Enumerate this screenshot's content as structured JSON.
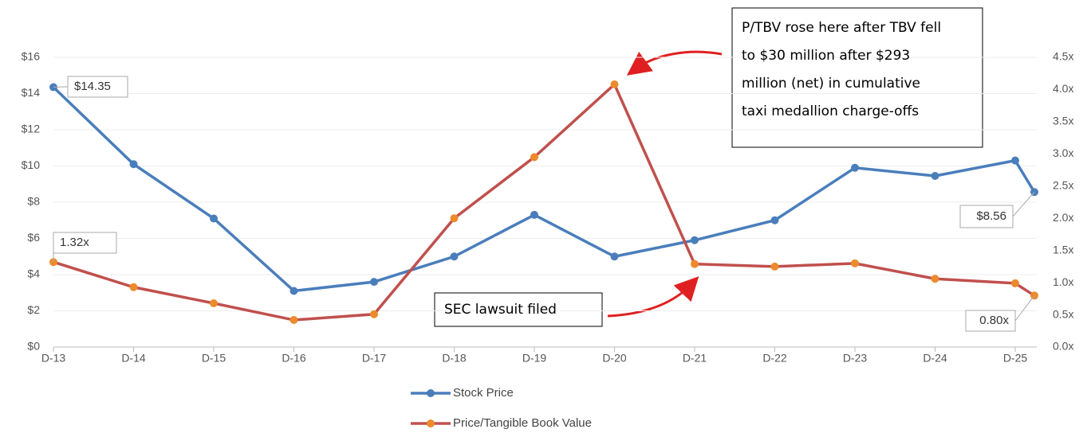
{
  "chart_data": {
    "type": "line",
    "categories": [
      "D-13",
      "D-14",
      "D-15",
      "D-16",
      "D-17",
      "D-18",
      "D-19",
      "D-20",
      "D-21",
      "D-22",
      "D-23",
      "D-24",
      "D-25",
      null
    ],
    "series": [
      {
        "name": "Stock Price",
        "color": "#4a7ebb",
        "marker_color": "#4a7ebb",
        "values": [
          14.35,
          10.1,
          7.1,
          3.1,
          3.6,
          5.0,
          7.3,
          5.0,
          5.9,
          7.0,
          9.9,
          9.45,
          10.3,
          8.56
        ],
        "value_labels": [
          "$14.35",
          null,
          null,
          null,
          null,
          null,
          null,
          null,
          null,
          null,
          null,
          null,
          null,
          "$8.56"
        ]
      },
      {
        "name": "Price/Tangible Book Value",
        "color": "#c0504d",
        "marker_color": "#ec8a2c",
        "axis": "y2",
        "values": [
          1.32,
          0.93,
          0.68,
          0.42,
          0.51,
          2.0,
          2.95,
          4.08,
          1.29,
          1.25,
          1.3,
          1.06,
          0.99,
          0.8
        ],
        "value_labels": [
          "1.32x",
          null,
          null,
          null,
          null,
          null,
          null,
          null,
          null,
          null,
          null,
          null,
          null,
          "0.80x"
        ]
      }
    ],
    "ylim": [
      0,
      16
    ],
    "yticks": [
      {
        "value": 0,
        "label": "$0"
      },
      {
        "value": 2,
        "label": "$2"
      },
      {
        "value": 4,
        "label": "$4"
      },
      {
        "value": 6,
        "label": "$6"
      },
      {
        "value": 8,
        "label": "$8"
      },
      {
        "value": 10,
        "label": "$10"
      },
      {
        "value": 12,
        "label": "$12"
      },
      {
        "value": 14,
        "label": "$14"
      },
      {
        "value": 16,
        "label": "$16"
      }
    ],
    "y2lim": [
      0,
      4.5
    ],
    "y2ticks": [
      {
        "value": 0,
        "label": "0.0x"
      },
      {
        "value": 0.5,
        "label": "0.5x"
      },
      {
        "value": 1,
        "label": "1.0x"
      },
      {
        "value": 1.5,
        "label": "1.5x"
      },
      {
        "value": 2,
        "label": "2.0x"
      },
      {
        "value": 2.5,
        "label": "2.5x"
      },
      {
        "value": 3,
        "label": "3.0x"
      },
      {
        "value": 3.5,
        "label": "3.5x"
      },
      {
        "value": 4,
        "label": "4.0x"
      },
      {
        "value": 4.5,
        "label": "4.5x"
      }
    ],
    "grid": true,
    "legend": "bottom",
    "annotations": [
      {
        "lines": [
          "P/TBV rose here after TBV fell",
          "to $30 million after $293",
          "million (net) in cumulative",
          "taxi medallion charge-offs"
        ]
      },
      {
        "lines": [
          "SEC lawsuit filed"
        ]
      }
    ]
  }
}
